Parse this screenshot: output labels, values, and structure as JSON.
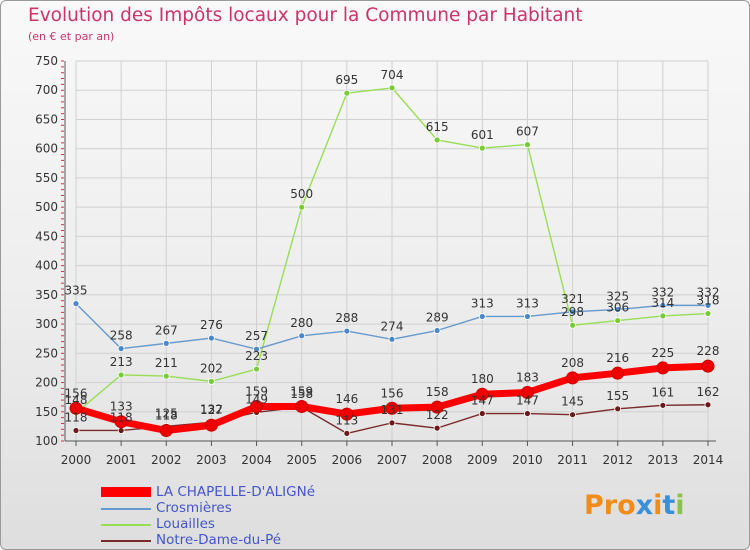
{
  "header": {
    "title": "Evolution des Impôts locaux pour la Commune par Habitant",
    "subtitle": "(en € et par an)"
  },
  "logo": {
    "text": "Proxiti",
    "colors": [
      "#f08c1a",
      "#f08c1a",
      "#f08c1a",
      "#3a8fd6",
      "#f08c1a",
      "#3a8fd6",
      "#8bc34a"
    ]
  },
  "chart_data": {
    "type": "line",
    "categories": [
      "2000",
      "2001",
      "2002",
      "2003",
      "2004",
      "2005",
      "2006",
      "2007",
      "2008",
      "2009",
      "2010",
      "2011",
      "2012",
      "2013",
      "2014"
    ],
    "ylim": [
      100,
      750
    ],
    "yticks": [
      100,
      150,
      200,
      250,
      300,
      350,
      400,
      450,
      500,
      550,
      600,
      650,
      700,
      750
    ],
    "grid": true,
    "legend_position": "bottom-left",
    "series": [
      {
        "name": "Louailles",
        "color": "#99dd55",
        "marker": "#77cc33",
        "values": [
          148,
          213,
          211,
          202,
          223,
          500,
          695,
          704,
          615,
          601,
          607,
          298,
          306,
          314,
          318
        ],
        "labels": [
          "148",
          "213",
          "211",
          "202",
          "223",
          "500",
          "695",
          "704",
          "615",
          "601",
          "607",
          "298",
          "306",
          "314",
          "318"
        ]
      },
      {
        "name": "Crosmières",
        "color": "#6699cc",
        "marker": "#4a88cc",
        "values": [
          335,
          258,
          267,
          276,
          257,
          280,
          288,
          274,
          289,
          313,
          313,
          321,
          325,
          332,
          332
        ],
        "labels": [
          "335",
          "258",
          "267",
          "276",
          "257",
          "280",
          "288",
          "274",
          "289",
          "313",
          "313",
          "321",
          "325",
          "332",
          "332"
        ]
      },
      {
        "name": "Notre-Dame-du-Pé",
        "color": "#7a2a2a",
        "marker": "#6a1a1a",
        "values": [
          118,
          118,
          125,
          132,
          149,
          158,
          113,
          131,
          122,
          147,
          147,
          145,
          155,
          161,
          162
        ],
        "labels": [
          "118",
          "118",
          "125",
          "132",
          "149",
          "158",
          "113",
          "131",
          "122",
          "147",
          "147",
          "145",
          "155",
          "161",
          "162"
        ]
      },
      {
        "name": "LA CHAPELLE-D'ALIGNé",
        "color": "#ff0000",
        "marker": "#ee0000",
        "values": [
          156,
          133,
          118,
          127,
          159,
          159,
          146,
          156,
          158,
          180,
          183,
          208,
          216,
          225,
          228
        ],
        "labels": [
          "156",
          "133",
          "118",
          "127",
          "159",
          "159",
          "146",
          "156",
          "158",
          "180",
          "183",
          "208",
          "216",
          "225",
          "228"
        ]
      }
    ]
  }
}
